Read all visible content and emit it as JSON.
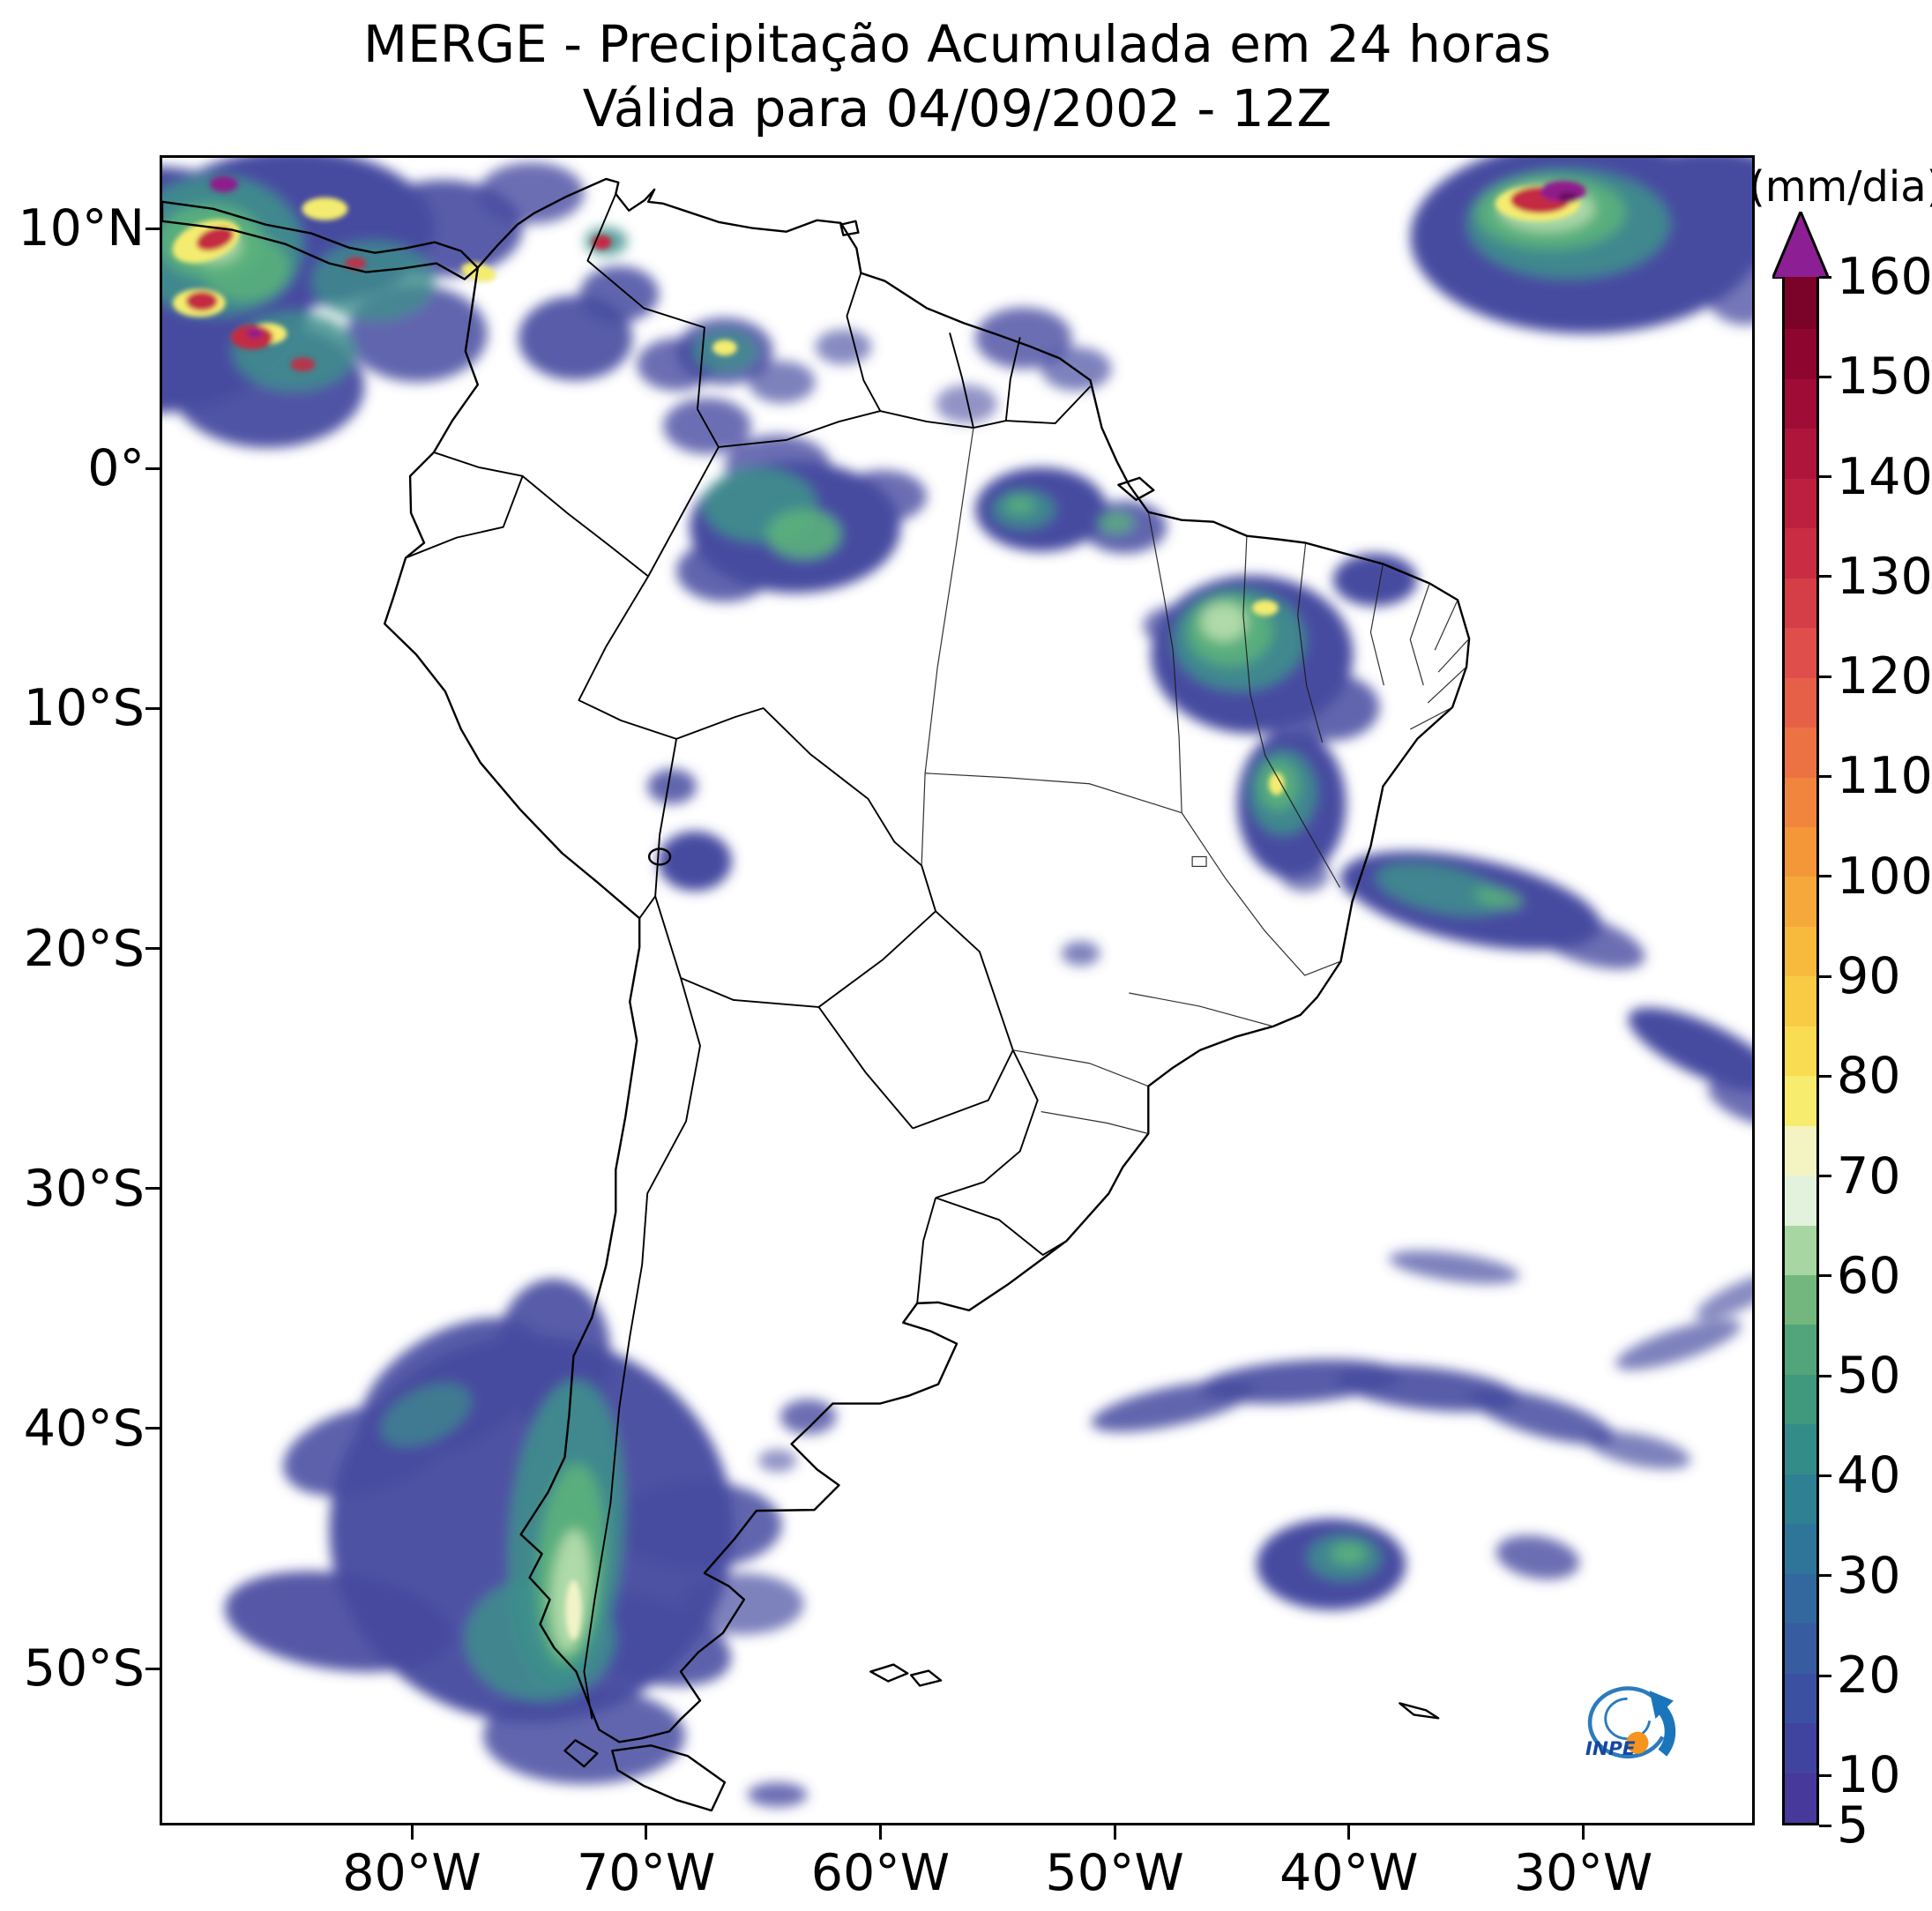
{
  "title": {
    "line1": "MERGE - Precipitação Acumulada em 24 horas",
    "line2": "Válida para 04/09/2002 - 12Z"
  },
  "map": {
    "lat_tick_labels": [
      "10°N",
      "0°",
      "10°S",
      "20°S",
      "30°S",
      "40°S",
      "50°S"
    ],
    "lon_tick_labels": [
      "80°W",
      "70°W",
      "60°W",
      "50°W",
      "40°W",
      "30°W"
    ]
  },
  "colorbar": {
    "unit_label": "(mm/dia)",
    "min": 5,
    "max": 160,
    "band_step": 5,
    "tick_values": [
      5,
      10,
      20,
      30,
      40,
      50,
      60,
      70,
      80,
      90,
      100,
      110,
      120,
      130,
      140,
      150,
      160
    ],
    "tick_labels": [
      "5",
      "10",
      "20",
      "30",
      "40",
      "50",
      "60",
      "70",
      "80",
      "90",
      "100",
      "110",
      "120",
      "130",
      "140",
      "150",
      "160"
    ],
    "band_colors": [
      "#46399B",
      "#41449E",
      "#3C50A1",
      "#375CA0",
      "#33689E",
      "#2F7499",
      "#2E8092",
      "#348C88",
      "#40987D",
      "#52A57A",
      "#74B77E",
      "#A7D6A2",
      "#E3F2DC",
      "#F4F4C2",
      "#F7EC6E",
      "#F9DC51",
      "#F9CB44",
      "#F8BA3D",
      "#F6A93A",
      "#F49739",
      "#F1853D",
      "#ED7243",
      "#E66047",
      "#DF4E4A",
      "#D53D47",
      "#CA2D43",
      "#BD203F",
      "#AF153B",
      "#9F0C35",
      "#8E052F",
      "#7B0228"
    ],
    "arrow_color": "#8C1F93"
  },
  "logo": {
    "label": "INPE"
  }
}
